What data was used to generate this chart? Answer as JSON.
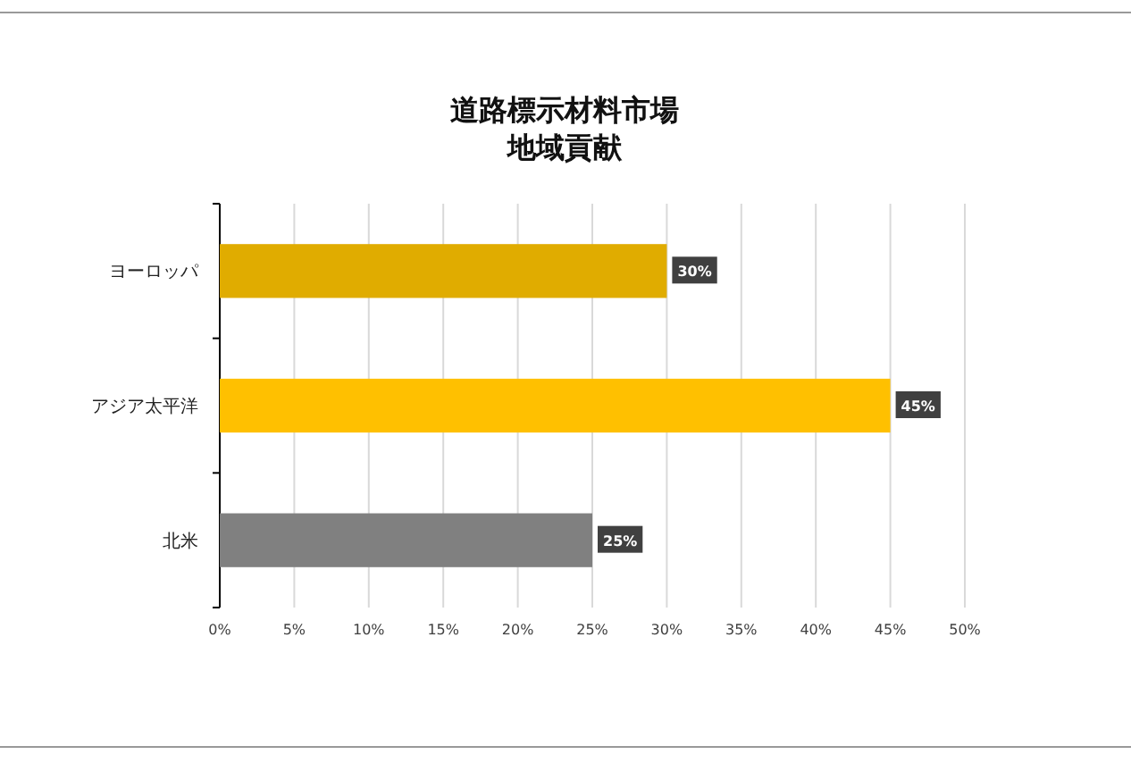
{
  "chart_data": {
    "type": "bar",
    "orientation": "horizontal",
    "title": "道路標示材料市場",
    "subtitle": "地域貢献",
    "categories": [
      "ヨーロッパ",
      "アジア太平洋",
      "北米"
    ],
    "values": [
      30,
      45,
      25
    ],
    "colors": [
      "#e0ac00",
      "#ffc000",
      "#808080"
    ],
    "value_labels": [
      "30%",
      "45%",
      "25%"
    ],
    "xlim": [
      0,
      50
    ],
    "xticks": [
      {
        "value": 0,
        "label": "0%"
      },
      {
        "value": 5,
        "label": "5%"
      },
      {
        "value": 10,
        "label": "10%"
      },
      {
        "value": 15,
        "label": "15%"
      },
      {
        "value": 20,
        "label": "20%"
      },
      {
        "value": 25,
        "label": "25%"
      },
      {
        "value": 30,
        "label": "30%"
      },
      {
        "value": 35,
        "label": "35%"
      },
      {
        "value": 40,
        "label": "40%"
      },
      {
        "value": 45,
        "label": "45%"
      },
      {
        "value": 50,
        "label": "50%"
      }
    ],
    "grid": "x"
  }
}
